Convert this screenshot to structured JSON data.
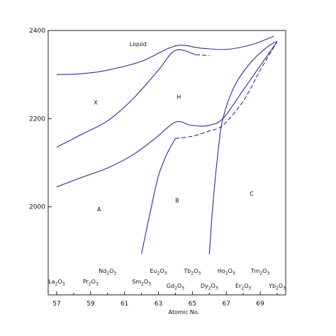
{
  "chart_data": {
    "type": "line",
    "xlabel": "Atomic No.",
    "ylabel": "",
    "xlim": [
      56.5,
      70.5
    ],
    "ylim": [
      1800,
      2400
    ],
    "x_ticks": [
      57,
      59,
      61,
      63,
      65,
      67,
      69
    ],
    "y_ticks": [
      2000,
      2200,
      2400
    ],
    "grid": false,
    "line_color": "#2b2f8f",
    "phase_labels": [
      {
        "text": "Liquid",
        "x": 61.8,
        "y": 2365
      },
      {
        "text": "X",
        "x": 59.3,
        "y": 2232
      },
      {
        "text": "H",
        "x": 64.2,
        "y": 2245
      },
      {
        "text": "A",
        "x": 59.5,
        "y": 1990
      },
      {
        "text": "B",
        "x": 64.1,
        "y": 2010
      },
      {
        "text": "C",
        "x": 68.5,
        "y": 2025
      }
    ],
    "compounds": [
      {
        "prefix": "La",
        "sub": "2",
        "mid": "O",
        "sub2": "3",
        "x": 57.0,
        "row": "lower"
      },
      {
        "prefix": "Pr",
        "sub": "2",
        "mid": "O",
        "sub2": "3",
        "x": 59.0,
        "row": "lower"
      },
      {
        "prefix": "Nd",
        "sub": "2",
        "mid": "O",
        "sub2": "3",
        "x": 60.0,
        "row": "upper"
      },
      {
        "prefix": "Sm",
        "sub": "2",
        "mid": "O",
        "sub2": "3",
        "x": 62.0,
        "row": "lower"
      },
      {
        "prefix": "Eu",
        "sub": "2",
        "mid": "O",
        "sub2": "3",
        "x": 63.0,
        "row": "upper"
      },
      {
        "prefix": "Gd",
        "sub": "2",
        "mid": "O",
        "sub2": "3",
        "x": 64.0,
        "row": "lowest"
      },
      {
        "prefix": "Tb",
        "sub": "2",
        "mid": "O",
        "sub2": "3",
        "x": 65.0,
        "row": "upper"
      },
      {
        "prefix": "Dy",
        "sub": "2",
        "mid": "O",
        "sub2": "3",
        "x": 66.0,
        "row": "lowest"
      },
      {
        "prefix": "Ho",
        "sub": "2",
        "mid": "O",
        "sub2": "3",
        "x": 67.0,
        "row": "upper"
      },
      {
        "prefix": "Er",
        "sub": "2",
        "mid": "O",
        "sub2": "3",
        "x": 68.0,
        "row": "lowest"
      },
      {
        "prefix": "Tm",
        "sub": "2",
        "mid": "O",
        "sub2": "3",
        "x": 69.0,
        "row": "upper"
      },
      {
        "prefix": "Yb",
        "sub": "2",
        "mid": "O",
        "sub2": "3",
        "x": 70.0,
        "row": "lowest"
      }
    ],
    "series": [
      {
        "style": "solid",
        "x": [
          57.0,
          58.5,
          60.0,
          62.0,
          64.0,
          65.5,
          67.0,
          68.5,
          69.8
        ],
        "y": [
          2300,
          2302,
          2310,
          2330,
          2365,
          2360,
          2357,
          2368,
          2387
        ]
      },
      {
        "style": "dashed",
        "x": [
          65.2,
          66.0
        ],
        "y": [
          2345,
          2343
        ]
      },
      {
        "style": "solid",
        "x": [
          57.0,
          58.5,
          60.0,
          61.5,
          63.0,
          64.0,
          65.2
        ],
        "y": [
          2135,
          2165,
          2195,
          2245,
          2310,
          2355,
          2345
        ]
      },
      {
        "style": "solid",
        "x": [
          57.0,
          58.5,
          60.0,
          61.5,
          62.8,
          64.0,
          64.8,
          65.5,
          66.0,
          66.8,
          68.0,
          69.0,
          70.0
        ],
        "y": [
          2045,
          2067,
          2088,
          2118,
          2155,
          2192,
          2186,
          2183,
          2185,
          2200,
          2265,
          2320,
          2375
        ]
      },
      {
        "style": "solid",
        "x": [
          62.0,
          62.5,
          63.0,
          63.5,
          64.0
        ],
        "y": [
          1893,
          1985,
          2070,
          2120,
          2155
        ]
      },
      {
        "style": "dashed",
        "x": [
          64.0,
          65.0,
          66.0,
          66.8,
          68.0,
          69.0,
          70.0
        ],
        "y": [
          2155,
          2160,
          2172,
          2185,
          2240,
          2310,
          2375
        ]
      },
      {
        "style": "solid",
        "x": [
          66.0,
          66.2,
          66.5,
          66.8,
          67.5,
          68.5,
          69.5,
          70.0
        ],
        "y": [
          1892,
          2000,
          2120,
          2200,
          2275,
          2330,
          2365,
          2375
        ]
      }
    ]
  }
}
